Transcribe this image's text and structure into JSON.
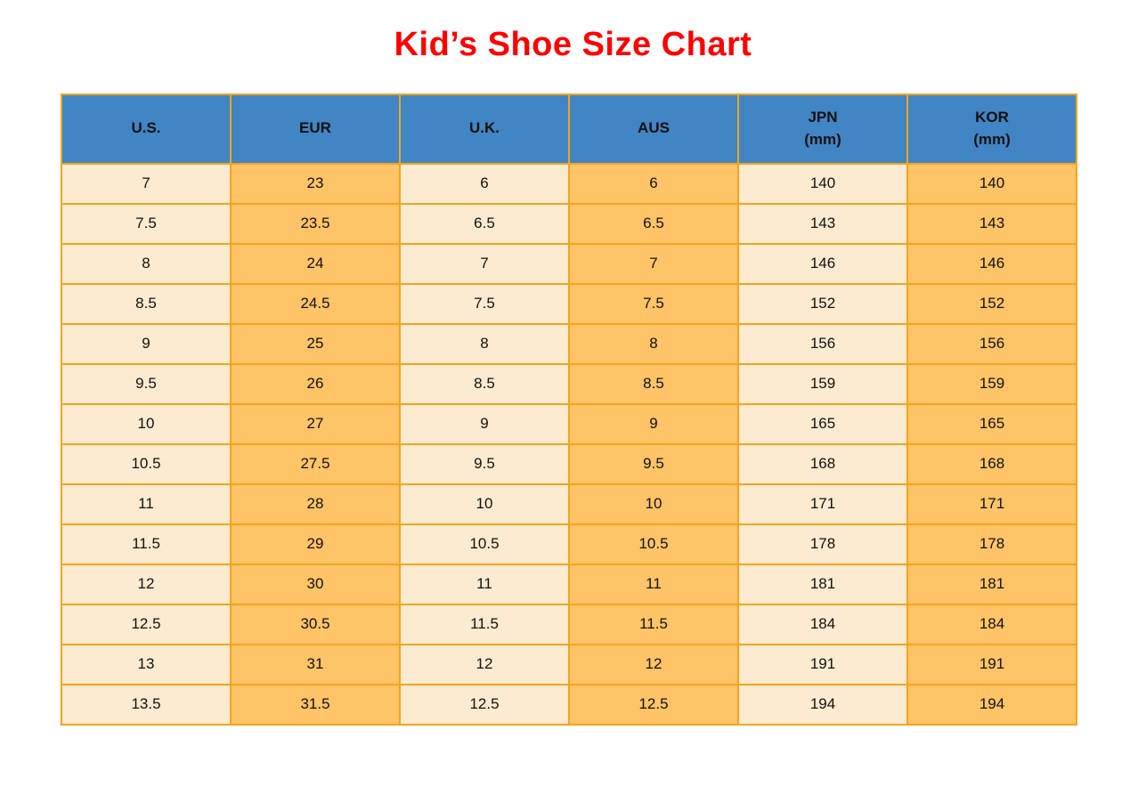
{
  "page": {
    "title": "Kid’s Shoe Size Chart"
  },
  "colors": {
    "title_red": "#fe0000",
    "header_blue": "#4285c4",
    "cell_cream": "#fcebd0",
    "cell_orange": "#ffc368",
    "border_orange": "#f2a51b",
    "text_black": "#111111",
    "page_bg": "#ffffff"
  },
  "chart_data": {
    "type": "table",
    "title": "Kid’s Shoe Size Chart",
    "columns": [
      {
        "key": "us",
        "label": "U.S."
      },
      {
        "key": "eur",
        "label": "EUR"
      },
      {
        "key": "uk",
        "label": "U.K."
      },
      {
        "key": "aus",
        "label": "AUS"
      },
      {
        "key": "jpn",
        "label": "JPN",
        "sub": "(mm)"
      },
      {
        "key": "kor",
        "label": "KOR",
        "sub": "(mm)"
      }
    ],
    "column_fill_pattern": [
      "cream",
      "orange",
      "cream",
      "orange",
      "cream",
      "orange"
    ],
    "header_fill": "blue",
    "grid": true,
    "rows": [
      [
        "7",
        "23",
        "6",
        "6",
        "140",
        "140"
      ],
      [
        "7.5",
        "23.5",
        "6.5",
        "6.5",
        "143",
        "143"
      ],
      [
        "8",
        "24",
        "7",
        "7",
        "146",
        "146"
      ],
      [
        "8.5",
        "24.5",
        "7.5",
        "7.5",
        "152",
        "152"
      ],
      [
        "9",
        "25",
        "8",
        "8",
        "156",
        "156"
      ],
      [
        "9.5",
        "26",
        "8.5",
        "8.5",
        "159",
        "159"
      ],
      [
        "10",
        "27",
        "9",
        "9",
        "165",
        "165"
      ],
      [
        "10.5",
        "27.5",
        "9.5",
        "9.5",
        "168",
        "168"
      ],
      [
        "11",
        "28",
        "10",
        "10",
        "171",
        "171"
      ],
      [
        "11.5",
        "29",
        "10.5",
        "10.5",
        "178",
        "178"
      ],
      [
        "12",
        "30",
        "11",
        "11",
        "181",
        "181"
      ],
      [
        "12.5",
        "30.5",
        "11.5",
        "11.5",
        "184",
        "184"
      ],
      [
        "13",
        "31",
        "12",
        "12",
        "191",
        "191"
      ],
      [
        "13.5",
        "31.5",
        "12.5",
        "12.5",
        "194",
        "194"
      ]
    ]
  }
}
